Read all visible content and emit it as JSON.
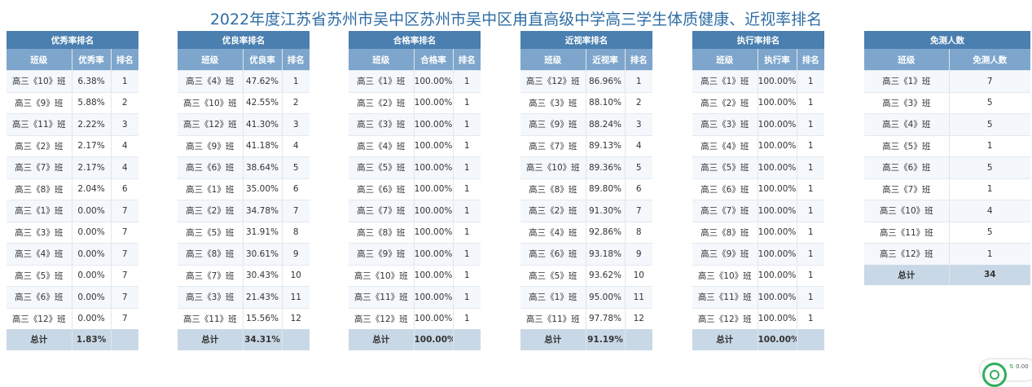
{
  "title": "2022年度江苏省苏州市吴中区苏州市吴中区甪直高级中学高三学生体质健康、近视率排名",
  "tables": [
    {
      "group": "优秀率排名",
      "headers": [
        "班级",
        "优秀率",
        "排名"
      ],
      "rows": [
        [
          "高三《10》班",
          "6.38%",
          "1"
        ],
        [
          "高三《9》班",
          "5.88%",
          "2"
        ],
        [
          "高三《11》班",
          "2.22%",
          "3"
        ],
        [
          "高三《2》班",
          "2.17%",
          "4"
        ],
        [
          "高三《7》班",
          "2.17%",
          "4"
        ],
        [
          "高三《8》班",
          "2.04%",
          "6"
        ],
        [
          "高三《1》班",
          "0.00%",
          "7"
        ],
        [
          "高三《3》班",
          "0.00%",
          "7"
        ],
        [
          "高三《4》班",
          "0.00%",
          "7"
        ],
        [
          "高三《5》班",
          "0.00%",
          "7"
        ],
        [
          "高三《6》班",
          "0.00%",
          "7"
        ],
        [
          "高三《12》班",
          "0.00%",
          "7"
        ]
      ],
      "total": [
        "总计",
        "1.83%",
        ""
      ]
    },
    {
      "group": "优良率排名",
      "headers": [
        "班级",
        "优良率",
        "排名"
      ],
      "rows": [
        [
          "高三《4》班",
          "47.62%",
          "1"
        ],
        [
          "高三《10》班",
          "42.55%",
          "2"
        ],
        [
          "高三《12》班",
          "41.30%",
          "3"
        ],
        [
          "高三《9》班",
          "41.18%",
          "4"
        ],
        [
          "高三《6》班",
          "38.64%",
          "5"
        ],
        [
          "高三《1》班",
          "35.00%",
          "6"
        ],
        [
          "高三《2》班",
          "34.78%",
          "7"
        ],
        [
          "高三《5》班",
          "31.91%",
          "8"
        ],
        [
          "高三《8》班",
          "30.61%",
          "9"
        ],
        [
          "高三《7》班",
          "30.43%",
          "10"
        ],
        [
          "高三《3》班",
          "21.43%",
          "11"
        ],
        [
          "高三《11》班",
          "15.56%",
          "12"
        ]
      ],
      "total": [
        "总计",
        "34.31%",
        ""
      ]
    },
    {
      "group": "合格率排名",
      "headers": [
        "班级",
        "合格率",
        "排名"
      ],
      "rows": [
        [
          "高三《1》班",
          "100.00%",
          "1"
        ],
        [
          "高三《2》班",
          "100.00%",
          "1"
        ],
        [
          "高三《3》班",
          "100.00%",
          "1"
        ],
        [
          "高三《4》班",
          "100.00%",
          "1"
        ],
        [
          "高三《5》班",
          "100.00%",
          "1"
        ],
        [
          "高三《6》班",
          "100.00%",
          "1"
        ],
        [
          "高三《7》班",
          "100.00%",
          "1"
        ],
        [
          "高三《8》班",
          "100.00%",
          "1"
        ],
        [
          "高三《9》班",
          "100.00%",
          "1"
        ],
        [
          "高三《10》班",
          "100.00%",
          "1"
        ],
        [
          "高三《11》班",
          "100.00%",
          "1"
        ],
        [
          "高三《12》班",
          "100.00%",
          "1"
        ]
      ],
      "total": [
        "总计",
        "100.00%",
        ""
      ]
    },
    {
      "group": "近视率排名",
      "headers": [
        "班级",
        "近视率",
        "排名"
      ],
      "rows": [
        [
          "高三《12》班",
          "86.96%",
          "1"
        ],
        [
          "高三《3》班",
          "88.10%",
          "2"
        ],
        [
          "高三《9》班",
          "88.24%",
          "3"
        ],
        [
          "高三《7》班",
          "89.13%",
          "4"
        ],
        [
          "高三《10》班",
          "89.36%",
          "5"
        ],
        [
          "高三《8》班",
          "89.80%",
          "6"
        ],
        [
          "高三《2》班",
          "91.30%",
          "7"
        ],
        [
          "高三《4》班",
          "92.86%",
          "8"
        ],
        [
          "高三《6》班",
          "93.18%",
          "9"
        ],
        [
          "高三《5》班",
          "93.62%",
          "10"
        ],
        [
          "高三《1》班",
          "95.00%",
          "11"
        ],
        [
          "高三《11》班",
          "97.78%",
          "12"
        ]
      ],
      "total": [
        "总计",
        "91.19%",
        ""
      ]
    },
    {
      "group": "执行率排名",
      "headers": [
        "班级",
        "执行率",
        "排名"
      ],
      "rows": [
        [
          "高三《1》班",
          "100.00%",
          "1"
        ],
        [
          "高三《2》班",
          "100.00%",
          "1"
        ],
        [
          "高三《3》班",
          "100.00%",
          "1"
        ],
        [
          "高三《4》班",
          "100.00%",
          "1"
        ],
        [
          "高三《5》班",
          "100.00%",
          "1"
        ],
        [
          "高三《6》班",
          "100.00%",
          "1"
        ],
        [
          "高三《7》班",
          "100.00%",
          "1"
        ],
        [
          "高三《8》班",
          "100.00%",
          "1"
        ],
        [
          "高三《9》班",
          "100.00%",
          "1"
        ],
        [
          "高三《10》班",
          "100.00%",
          "1"
        ],
        [
          "高三《11》班",
          "100.00%",
          "1"
        ],
        [
          "高三《12》班",
          "100.00%",
          "1"
        ]
      ],
      "total": [
        "总计",
        "100.00%",
        ""
      ]
    },
    {
      "group": "免测人数",
      "headers": [
        "班级",
        "免测人数"
      ],
      "rows": [
        [
          "高三《1》班",
          "7"
        ],
        [
          "高三《3》班",
          "5"
        ],
        [
          "高三《4》班",
          "5"
        ],
        [
          "高三《5》班",
          "1"
        ],
        [
          "高三《6》班",
          "5"
        ],
        [
          "高三《7》班",
          "1"
        ],
        [
          "高三《10》班",
          "4"
        ],
        [
          "高三《11》班",
          "5"
        ],
        [
          "高三《12》班",
          "1"
        ]
      ],
      "total": [
        "总计",
        "34"
      ]
    }
  ],
  "badge": {
    "value": "0.00",
    "arrow": "⇅",
    "color": "#2fae5c"
  }
}
